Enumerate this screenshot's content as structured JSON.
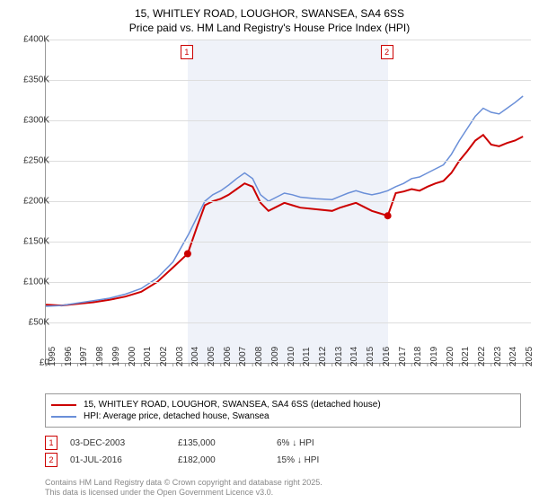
{
  "title_line1": "15, WHITLEY ROAD, LOUGHOR, SWANSEA, SA4 6SS",
  "title_line2": "Price paid vs. HM Land Registry's House Price Index (HPI)",
  "chart": {
    "type": "line",
    "xlim": [
      1995,
      2025.5
    ],
    "ylim": [
      0,
      400000
    ],
    "ytick_step": 50000,
    "yticks": [
      "£0",
      "£50K",
      "£100K",
      "£150K",
      "£200K",
      "£250K",
      "£300K",
      "£350K",
      "£400K"
    ],
    "xticks": [
      "1995",
      "1996",
      "1997",
      "1998",
      "1999",
      "2000",
      "2001",
      "2002",
      "2003",
      "2004",
      "2005",
      "2006",
      "2007",
      "2008",
      "2009",
      "2010",
      "2011",
      "2012",
      "2013",
      "2014",
      "2015",
      "2016",
      "2017",
      "2018",
      "2019",
      "2020",
      "2021",
      "2022",
      "2023",
      "2024",
      "2025"
    ],
    "background_color": "#ffffff",
    "grid_color": "#dddddd",
    "shade_range": [
      2003.92,
      2016.5
    ],
    "shade_color": "rgba(100,130,200,0.1)",
    "series": [
      {
        "name": "price_paid",
        "label": "15, WHITLEY ROAD, LOUGHOR, SWANSEA, SA4 6SS (detached house)",
        "color": "#cc0000",
        "line_width": 2,
        "points": [
          [
            1995,
            72000
          ],
          [
            1996,
            71000
          ],
          [
            1997,
            73000
          ],
          [
            1998,
            75000
          ],
          [
            1999,
            78000
          ],
          [
            2000,
            82000
          ],
          [
            2001,
            88000
          ],
          [
            2002,
            100000
          ],
          [
            2003,
            118000
          ],
          [
            2003.92,
            135000
          ],
          [
            2004.5,
            168000
          ],
          [
            2005,
            195000
          ],
          [
            2005.5,
            200000
          ],
          [
            2006,
            203000
          ],
          [
            2006.5,
            208000
          ],
          [
            2007,
            215000
          ],
          [
            2007.5,
            222000
          ],
          [
            2008,
            218000
          ],
          [
            2008.5,
            198000
          ],
          [
            2009,
            188000
          ],
          [
            2009.5,
            193000
          ],
          [
            2010,
            198000
          ],
          [
            2010.5,
            195000
          ],
          [
            2011,
            192000
          ],
          [
            2012,
            190000
          ],
          [
            2013,
            188000
          ],
          [
            2013.5,
            192000
          ],
          [
            2014,
            195000
          ],
          [
            2014.5,
            198000
          ],
          [
            2015,
            193000
          ],
          [
            2015.5,
            188000
          ],
          [
            2016,
            185000
          ],
          [
            2016.5,
            182000
          ],
          [
            2017,
            210000
          ],
          [
            2017.5,
            212000
          ],
          [
            2018,
            215000
          ],
          [
            2018.5,
            213000
          ],
          [
            2019,
            218000
          ],
          [
            2019.5,
            222000
          ],
          [
            2020,
            225000
          ],
          [
            2020.5,
            235000
          ],
          [
            2021,
            250000
          ],
          [
            2021.5,
            262000
          ],
          [
            2022,
            275000
          ],
          [
            2022.5,
            282000
          ],
          [
            2023,
            270000
          ],
          [
            2023.5,
            268000
          ],
          [
            2024,
            272000
          ],
          [
            2024.5,
            275000
          ],
          [
            2025,
            280000
          ]
        ]
      },
      {
        "name": "hpi",
        "label": "HPI: Average price, detached house, Swansea",
        "color": "#6a8fd8",
        "line_width": 1.5,
        "points": [
          [
            1995,
            70000
          ],
          [
            1996,
            71000
          ],
          [
            1997,
            74000
          ],
          [
            1998,
            77000
          ],
          [
            1999,
            80000
          ],
          [
            2000,
            85000
          ],
          [
            2001,
            92000
          ],
          [
            2002,
            105000
          ],
          [
            2003,
            125000
          ],
          [
            2004,
            160000
          ],
          [
            2004.5,
            180000
          ],
          [
            2005,
            200000
          ],
          [
            2005.5,
            208000
          ],
          [
            2006,
            213000
          ],
          [
            2006.5,
            220000
          ],
          [
            2007,
            228000
          ],
          [
            2007.5,
            235000
          ],
          [
            2008,
            228000
          ],
          [
            2008.5,
            208000
          ],
          [
            2009,
            200000
          ],
          [
            2009.5,
            205000
          ],
          [
            2010,
            210000
          ],
          [
            2010.5,
            208000
          ],
          [
            2011,
            205000
          ],
          [
            2012,
            203000
          ],
          [
            2013,
            202000
          ],
          [
            2013.5,
            206000
          ],
          [
            2014,
            210000
          ],
          [
            2014.5,
            213000
          ],
          [
            2015,
            210000
          ],
          [
            2015.5,
            208000
          ],
          [
            2016,
            210000
          ],
          [
            2016.5,
            213000
          ],
          [
            2017,
            218000
          ],
          [
            2017.5,
            222000
          ],
          [
            2018,
            228000
          ],
          [
            2018.5,
            230000
          ],
          [
            2019,
            235000
          ],
          [
            2019.5,
            240000
          ],
          [
            2020,
            245000
          ],
          [
            2020.5,
            258000
          ],
          [
            2021,
            275000
          ],
          [
            2021.5,
            290000
          ],
          [
            2022,
            305000
          ],
          [
            2022.5,
            315000
          ],
          [
            2023,
            310000
          ],
          [
            2023.5,
            308000
          ],
          [
            2024,
            315000
          ],
          [
            2024.5,
            322000
          ],
          [
            2025,
            330000
          ]
        ]
      }
    ],
    "markers": [
      {
        "id": "1",
        "x": 2003.92,
        "price": 135000
      },
      {
        "id": "2",
        "x": 2016.5,
        "price": 182000
      }
    ]
  },
  "legend": {
    "items": [
      {
        "color": "#cc0000",
        "label": "15, WHITLEY ROAD, LOUGHOR, SWANSEA, SA4 6SS (detached house)"
      },
      {
        "color": "#6a8fd8",
        "label": "HPI: Average price, detached house, Swansea"
      }
    ]
  },
  "datapoints": [
    {
      "id": "1",
      "date": "03-DEC-2003",
      "price": "£135,000",
      "hpi_diff": "6% ↓ HPI"
    },
    {
      "id": "2",
      "date": "01-JUL-2016",
      "price": "£182,000",
      "hpi_diff": "15% ↓ HPI"
    }
  ],
  "footer_line1": "Contains HM Land Registry data © Crown copyright and database right 2025.",
  "footer_line2": "This data is licensed under the Open Government Licence v3.0."
}
